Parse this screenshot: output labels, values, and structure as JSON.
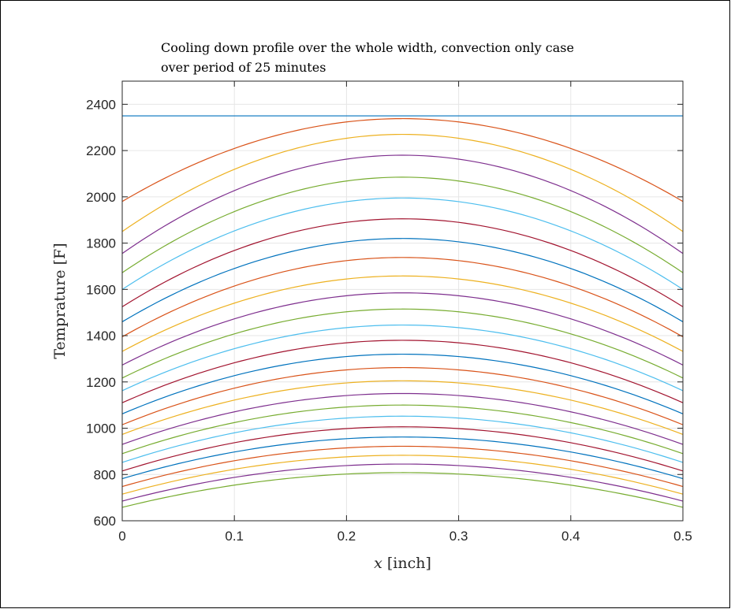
{
  "chart_data": {
    "type": "line",
    "title_lines": [
      "Cooling down profile over the whole width, convection only case",
      "over period of 25 minutes"
    ],
    "xlabel_var": "x",
    "xlabel_unit": " [inch]",
    "ylabel": "Temprature [F]",
    "xlim": [
      0,
      0.5
    ],
    "ylim": [
      600,
      2500
    ],
    "x_ticks": [
      "0",
      "0.1",
      "0.2",
      "0.3",
      "0.4",
      "0.5"
    ],
    "y_ticks": [
      "600",
      "800",
      "1000",
      "1200",
      "1400",
      "1600",
      "1800",
      "2000",
      "2200",
      "2400"
    ],
    "grid": true,
    "curve_shape": "symmetric parabola centered at x = 0.25",
    "series_colors": [
      "#0072BD",
      "#D95319",
      "#EDB120",
      "#7E2F8E",
      "#77AC30",
      "#4DBEEE",
      "#A2142F"
    ],
    "series": [
      {
        "edge": 2350,
        "center": 2350
      },
      {
        "edge": 1980,
        "center": 2338
      },
      {
        "edge": 1850,
        "center": 2270
      },
      {
        "edge": 1755,
        "center": 2180
      },
      {
        "edge": 1672,
        "center": 2085
      },
      {
        "edge": 1600,
        "center": 1995
      },
      {
        "edge": 1525,
        "center": 1905
      },
      {
        "edge": 1460,
        "center": 1820
      },
      {
        "edge": 1395,
        "center": 1738
      },
      {
        "edge": 1332,
        "center": 1658
      },
      {
        "edge": 1273,
        "center": 1585
      },
      {
        "edge": 1217,
        "center": 1515
      },
      {
        "edge": 1162,
        "center": 1446
      },
      {
        "edge": 1110,
        "center": 1380
      },
      {
        "edge": 1062,
        "center": 1320
      },
      {
        "edge": 1015,
        "center": 1262
      },
      {
        "edge": 973,
        "center": 1205
      },
      {
        "edge": 930,
        "center": 1150
      },
      {
        "edge": 890,
        "center": 1100
      },
      {
        "edge": 852,
        "center": 1052
      },
      {
        "edge": 815,
        "center": 1006
      },
      {
        "edge": 782,
        "center": 962
      },
      {
        "edge": 748,
        "center": 922
      },
      {
        "edge": 715,
        "center": 883
      },
      {
        "edge": 685,
        "center": 845
      },
      {
        "edge": 658,
        "center": 808
      }
    ]
  }
}
